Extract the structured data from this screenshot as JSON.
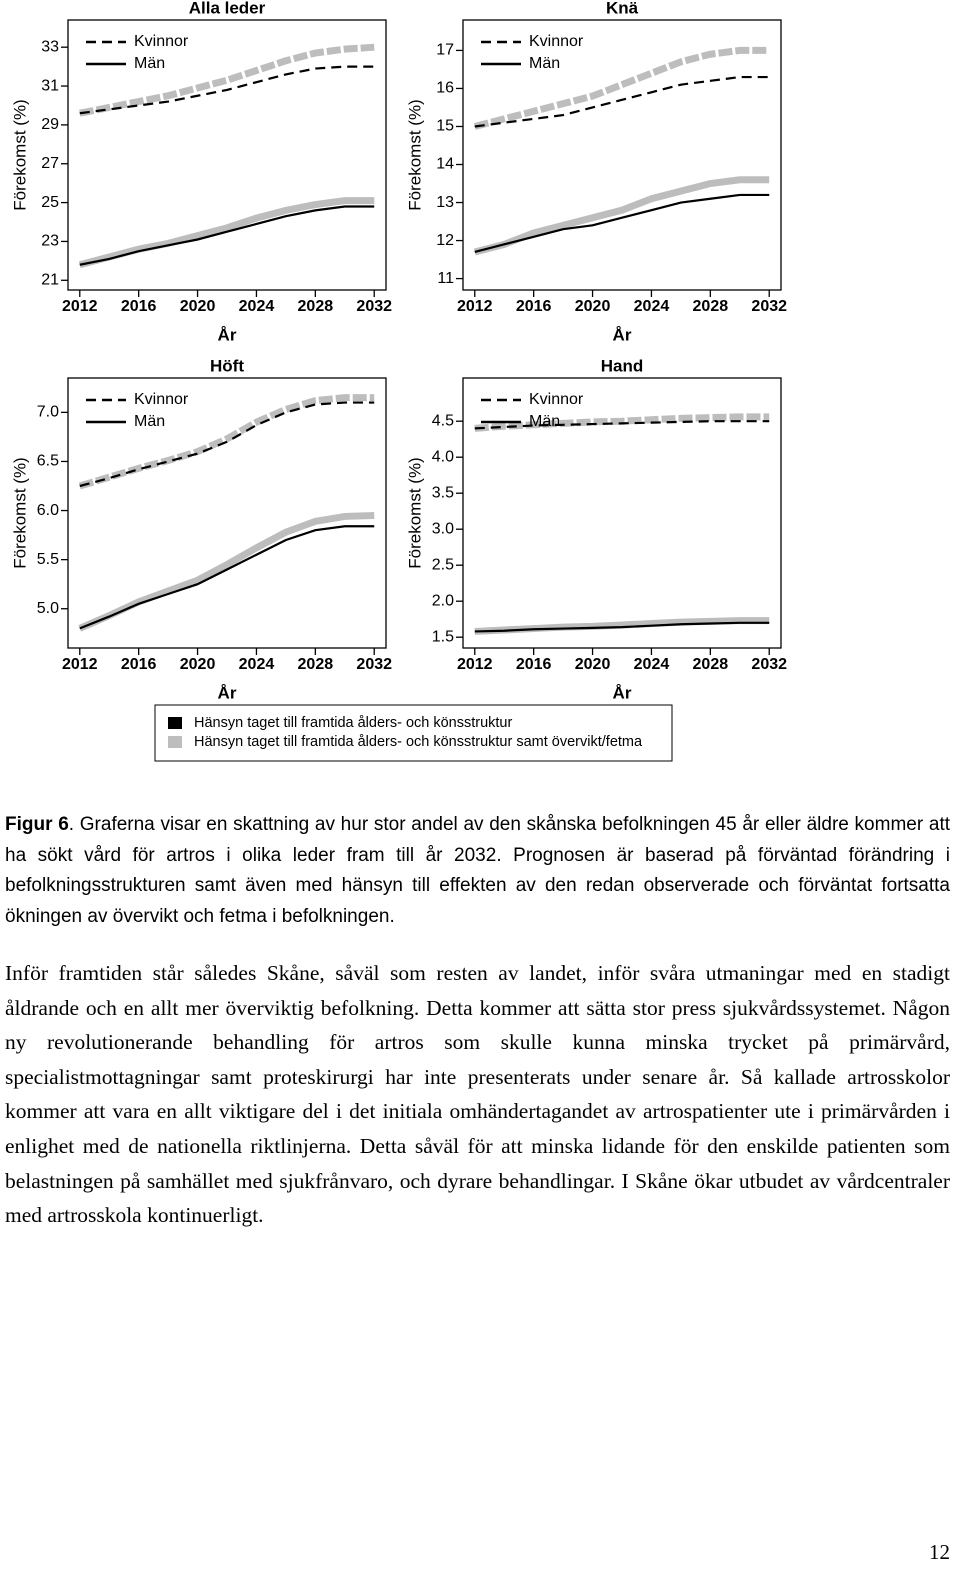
{
  "chart_data": [
    {
      "type": "line",
      "title": "Alla leder",
      "ylabel": "Förekomst (%)",
      "xlabel": "År",
      "x": [
        2012,
        2014,
        2016,
        2018,
        2020,
        2022,
        2024,
        2026,
        2028,
        2030,
        2032
      ],
      "xlim": [
        2011.2,
        2032.8
      ],
      "xticks": [
        2012,
        2016,
        2020,
        2024,
        2028,
        2032
      ],
      "ylim": [
        20.5,
        34.4
      ],
      "yticks": [
        21,
        23,
        25,
        27,
        29,
        31,
        33
      ],
      "series": [
        {
          "name": "Kvinnor",
          "dash": true,
          "scenario": 1,
          "values": [
            29.6,
            29.9,
            30.2,
            30.5,
            30.9,
            31.3,
            31.8,
            32.3,
            32.7,
            32.9,
            33.0
          ]
        },
        {
          "name": "Män",
          "dash": false,
          "scenario": 1,
          "values": [
            21.8,
            22.2,
            22.6,
            22.9,
            23.3,
            23.7,
            24.2,
            24.6,
            24.9,
            25.1,
            25.1
          ]
        },
        {
          "name": "Kvinnor",
          "dash": true,
          "scenario": 0,
          "values": [
            29.6,
            29.8,
            30.0,
            30.2,
            30.5,
            30.8,
            31.2,
            31.6,
            31.9,
            32.0,
            32.0
          ]
        },
        {
          "name": "Män",
          "dash": false,
          "scenario": 0,
          "values": [
            21.8,
            22.1,
            22.5,
            22.8,
            23.1,
            23.5,
            23.9,
            24.3,
            24.6,
            24.8,
            24.8
          ]
        }
      ]
    },
    {
      "type": "line",
      "title": "Knä",
      "ylabel": "Förekomst (%)",
      "xlabel": "År",
      "x": [
        2012,
        2014,
        2016,
        2018,
        2020,
        2022,
        2024,
        2026,
        2028,
        2030,
        2032
      ],
      "xlim": [
        2011.2,
        2032.8
      ],
      "xticks": [
        2012,
        2016,
        2020,
        2024,
        2028,
        2032
      ],
      "ylim": [
        10.7,
        17.8
      ],
      "yticks": [
        11,
        12,
        13,
        14,
        15,
        16,
        17
      ],
      "series": [
        {
          "name": "Kvinnor",
          "dash": true,
          "scenario": 1,
          "values": [
            15.0,
            15.2,
            15.4,
            15.6,
            15.8,
            16.1,
            16.4,
            16.7,
            16.9,
            17.0,
            17.0
          ]
        },
        {
          "name": "Män",
          "dash": false,
          "scenario": 1,
          "values": [
            11.7,
            11.9,
            12.2,
            12.4,
            12.6,
            12.8,
            13.1,
            13.3,
            13.5,
            13.6,
            13.6
          ]
        },
        {
          "name": "Kvinnor",
          "dash": true,
          "scenario": 0,
          "values": [
            15.0,
            15.1,
            15.2,
            15.3,
            15.5,
            15.7,
            15.9,
            16.1,
            16.2,
            16.3,
            16.3
          ]
        },
        {
          "name": "Män",
          "dash": false,
          "scenario": 0,
          "values": [
            11.7,
            11.9,
            12.1,
            12.3,
            12.4,
            12.6,
            12.8,
            13.0,
            13.1,
            13.2,
            13.2
          ]
        }
      ]
    },
    {
      "type": "line",
      "title": "Höft",
      "ylabel": "Förekomst (%)",
      "xlabel": "År",
      "x": [
        2012,
        2014,
        2016,
        2018,
        2020,
        2022,
        2024,
        2026,
        2028,
        2030,
        2032
      ],
      "xlim": [
        2011.2,
        2032.8
      ],
      "xticks": [
        2012,
        2016,
        2020,
        2024,
        2028,
        2032
      ],
      "ylim": [
        4.6,
        7.35
      ],
      "yticks": [
        {
          "value": 5,
          "label": "5.0"
        },
        5.5,
        {
          "value": 6,
          "label": "6.0"
        },
        6.5,
        {
          "value": 7,
          "label": "7.0"
        }
      ],
      "series": [
        {
          "name": "Kvinnor",
          "dash": true,
          "scenario": 1,
          "values": [
            6.25,
            6.34,
            6.43,
            6.51,
            6.6,
            6.73,
            6.9,
            7.03,
            7.12,
            7.15,
            7.15
          ]
        },
        {
          "name": "Män",
          "dash": false,
          "scenario": 1,
          "values": [
            4.8,
            4.93,
            5.07,
            5.18,
            5.29,
            5.45,
            5.62,
            5.78,
            5.89,
            5.94,
            5.95
          ]
        },
        {
          "name": "Kvinnor",
          "dash": true,
          "scenario": 0,
          "values": [
            6.25,
            6.33,
            6.42,
            6.5,
            6.58,
            6.7,
            6.87,
            7.0,
            7.08,
            7.1,
            7.1
          ]
        },
        {
          "name": "Män",
          "dash": false,
          "scenario": 0,
          "values": [
            4.8,
            4.92,
            5.05,
            5.15,
            5.25,
            5.4,
            5.55,
            5.7,
            5.8,
            5.84,
            5.84
          ]
        }
      ]
    },
    {
      "type": "line",
      "title": "Hand",
      "ylabel": "Förekomst (%)",
      "xlabel": "År",
      "x": [
        2012,
        2014,
        2016,
        2018,
        2020,
        2022,
        2024,
        2026,
        2028,
        2030,
        2032
      ],
      "xlim": [
        2011.2,
        2032.8
      ],
      "xticks": [
        2012,
        2016,
        2020,
        2024,
        2028,
        2032
      ],
      "ylim": [
        1.35,
        5.1
      ],
      "yticks": [
        1.5,
        {
          "value": 2,
          "label": "2.0"
        },
        2.5,
        {
          "value": 3,
          "label": "3.0"
        },
        3.5,
        {
          "value": 4,
          "label": "4.0"
        },
        4.5
      ],
      "series": [
        {
          "name": "Kvinnor",
          "dash": true,
          "scenario": 1,
          "values": [
            4.4,
            4.43,
            4.45,
            4.47,
            4.49,
            4.5,
            4.52,
            4.54,
            4.55,
            4.56,
            4.56
          ]
        },
        {
          "name": "Män",
          "dash": false,
          "scenario": 1,
          "values": [
            1.58,
            1.6,
            1.62,
            1.64,
            1.65,
            1.67,
            1.69,
            1.71,
            1.72,
            1.73,
            1.73
          ]
        },
        {
          "name": "Kvinnor",
          "dash": true,
          "scenario": 0,
          "values": [
            4.4,
            4.42,
            4.44,
            4.45,
            4.46,
            4.47,
            4.48,
            4.49,
            4.5,
            4.5,
            4.5
          ]
        },
        {
          "name": "Män",
          "dash": false,
          "scenario": 0,
          "values": [
            1.58,
            1.59,
            1.61,
            1.62,
            1.63,
            1.64,
            1.66,
            1.68,
            1.69,
            1.7,
            1.7
          ]
        }
      ]
    }
  ],
  "scenarios": [
    {
      "name": "Hänsyn taget till framtida ålders- och könsstruktur",
      "color": "#000000"
    },
    {
      "name": "Hänsyn taget till framtida ålders- och könsstruktur samt övervikt/fetma",
      "color": "#bdbdbd"
    }
  ],
  "caption": {
    "label": "Figur 6",
    "text": ". Graferna visar en skattning av hur stor andel av den skånska befolkningen 45 år eller äldre kommer att ha sökt vård för artros i olika leder fram till år 2032. Prognosen är baserad på förväntad förändring i befolkningsstrukturen samt även med hänsyn till effekten av den redan observerade och förväntat fortsatta ökningen av övervikt och fetma i befolkningen."
  },
  "body": "Inför framtiden står således Skåne, såväl som resten av landet, inför svåra utmaningar med en stadigt åldrande och en allt mer överviktig befolkning. Detta kommer att sätta stor press sjukvårdssystemet. Någon ny revolutionerande behandling för artros som skulle kunna minska trycket på primärvård, specialistmottagningar samt proteskirurgi har inte presenterats under senare år. Så kallade artrosskolor kommer att vara en allt viktigare del i det initiala omhändertagandet av artrospatienter ute i primärvården i enlighet med de nationella riktlinjerna. Detta såväl för att minska lidande för den enskilde patienten som belastningen på samhället med sjukfrånvaro, och dyrare behandlingar. I Skåne ökar utbudet av vårdcentraler med artrosskola kontinuerligt.",
  "page_number": "12"
}
